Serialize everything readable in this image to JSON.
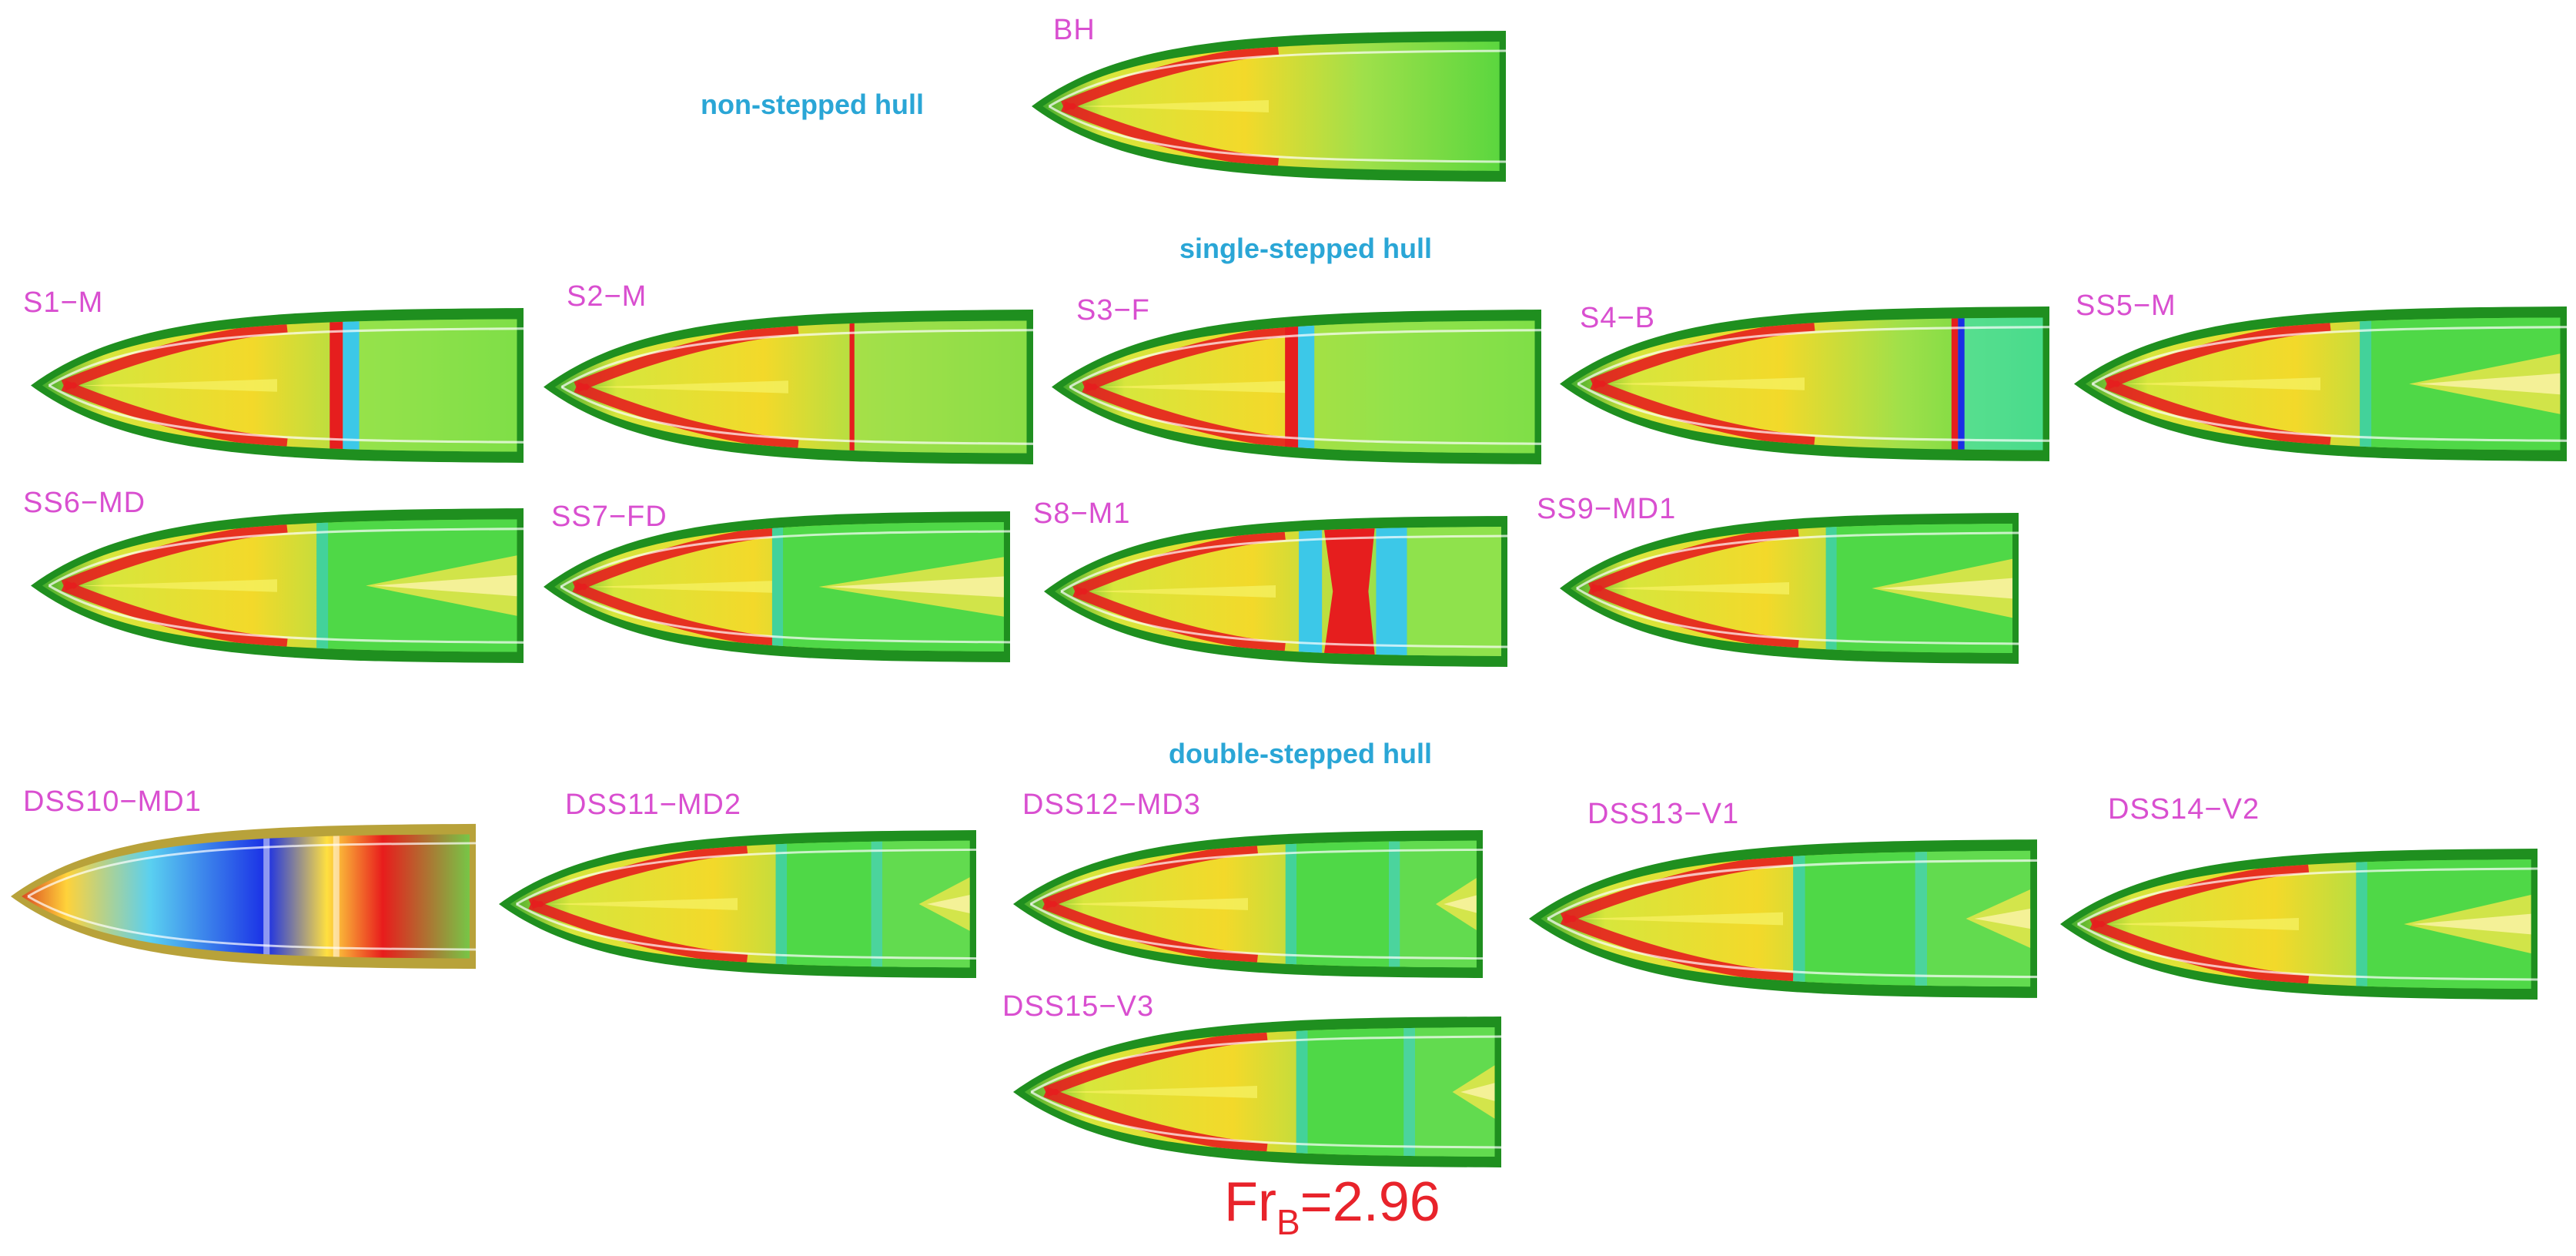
{
  "sections": {
    "non_stepped": "non-stepped hull",
    "single_stepped": "single-stepped hull",
    "double_stepped": "double-stepped hull"
  },
  "hulls": [
    {
      "id": "BH",
      "label": "BH",
      "steps": [],
      "variant": "base"
    },
    {
      "id": "S1-M",
      "label": "S1−M",
      "steps": [
        0.62
      ],
      "variant": "redstep"
    },
    {
      "id": "S2-M",
      "label": "S2−M",
      "steps": [
        0.63
      ],
      "variant": "thinstep"
    },
    {
      "id": "S3-F",
      "label": "S3−F",
      "steps": [
        0.49
      ],
      "variant": "redstep"
    },
    {
      "id": "S4-B",
      "label": "S4−B",
      "steps": [
        0.81
      ],
      "variant": "bluestep"
    },
    {
      "id": "SS5-M",
      "label": "SS5−M",
      "steps": [
        0.58
      ],
      "variant": "wake"
    },
    {
      "id": "SS6-MD",
      "label": "SS6−MD",
      "steps": [
        0.58
      ],
      "variant": "wake"
    },
    {
      "id": "SS7-FD",
      "label": "SS7−FD",
      "steps": [
        0.49
      ],
      "variant": "wake"
    },
    {
      "id": "S8-M1",
      "label": "S8−M1",
      "steps": [
        0.6
      ],
      "variant": "redzone"
    },
    {
      "id": "SS9-MD1",
      "label": "SS9−MD1",
      "steps": [
        0.58
      ],
      "variant": "wake"
    },
    {
      "id": "DSS10-MD1",
      "label": "DSS10−MD1",
      "steps": [
        0.55,
        0.7
      ],
      "variant": "blue"
    },
    {
      "id": "DSS11-MD2",
      "label": "DSS11−MD2",
      "steps": [
        0.58,
        0.78
      ],
      "variant": "double"
    },
    {
      "id": "DSS12-MD3",
      "label": "DSS12−MD3",
      "steps": [
        0.58,
        0.8
      ],
      "variant": "double"
    },
    {
      "id": "DSS13-V1",
      "label": "DSS13−V1",
      "steps": [
        0.52,
        0.76
      ],
      "variant": "double"
    },
    {
      "id": "DSS14-V2",
      "label": "DSS14−V2",
      "steps": [
        0.62
      ],
      "variant": "double"
    },
    {
      "id": "DSS15-V3",
      "label": "DSS15−V3",
      "steps": [
        0.58,
        0.8
      ],
      "variant": "double"
    }
  ],
  "froude": {
    "main": "Fr",
    "sub": "B",
    "value": "=2.96"
  },
  "colors": {
    "label": "#d94fd0",
    "title": "#2aa6d6",
    "froude": "#e8232b"
  }
}
